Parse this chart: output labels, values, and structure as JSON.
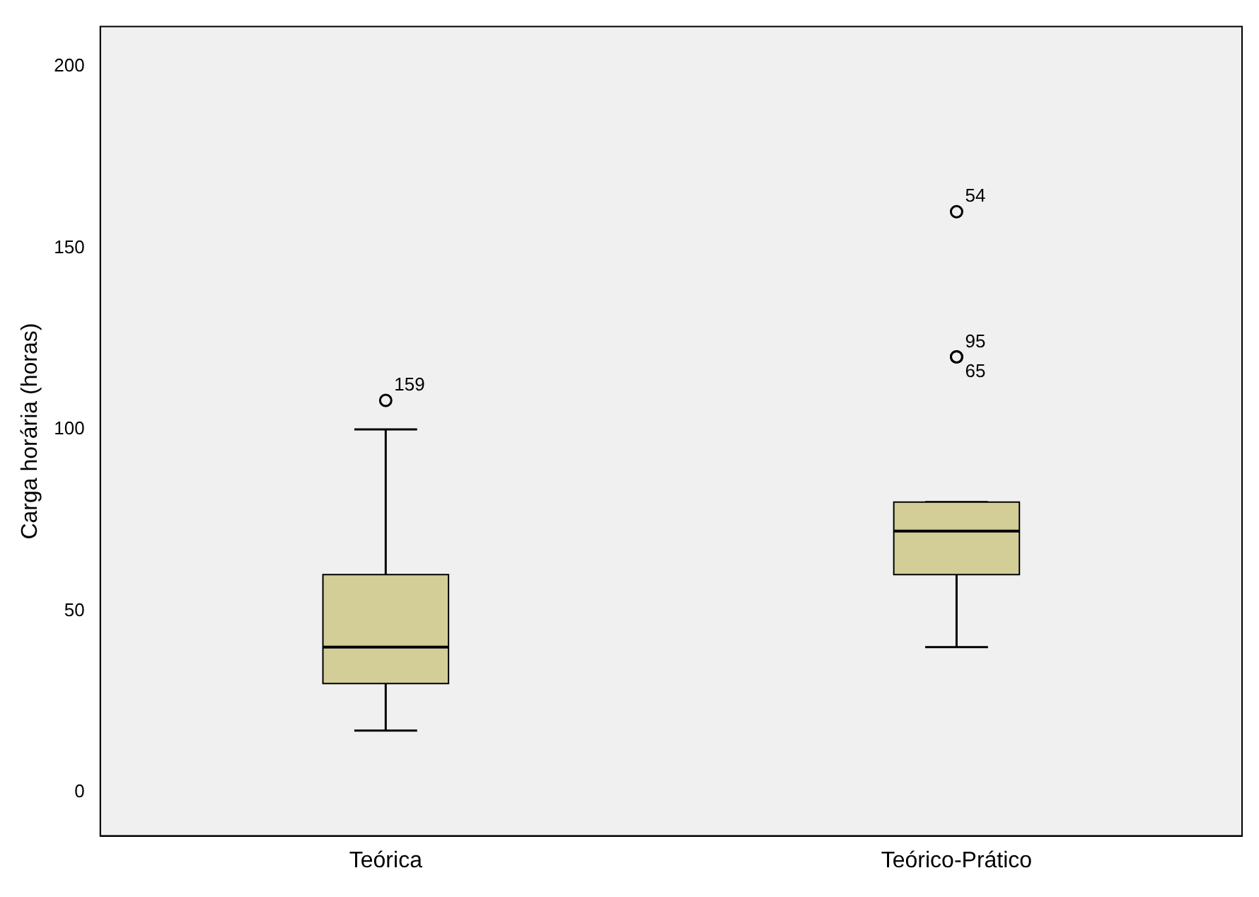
{
  "chart_data": {
    "type": "box",
    "ylabel": "Carga horária (horas)",
    "categories": [
      "Teórica",
      "Teórico-Prático"
    ],
    "boxes": [
      {
        "low": 17,
        "q1": 30,
        "median": 40,
        "q3": 60,
        "high": 100,
        "outliers": [
          108
        ]
      },
      {
        "low": 40,
        "q1": 60,
        "median": 72,
        "q3": 80,
        "high": 80,
        "outliers": [
          160,
          120,
          120
        ]
      }
    ],
    "color": "#d3ce97",
    "ylim": [
      -12,
      211
    ],
    "yticks": [
      0,
      50,
      100,
      150,
      200
    ],
    "grid": false,
    "legend": false,
    "annotations": [
      "159",
      "54",
      "95",
      "65"
    ]
  }
}
